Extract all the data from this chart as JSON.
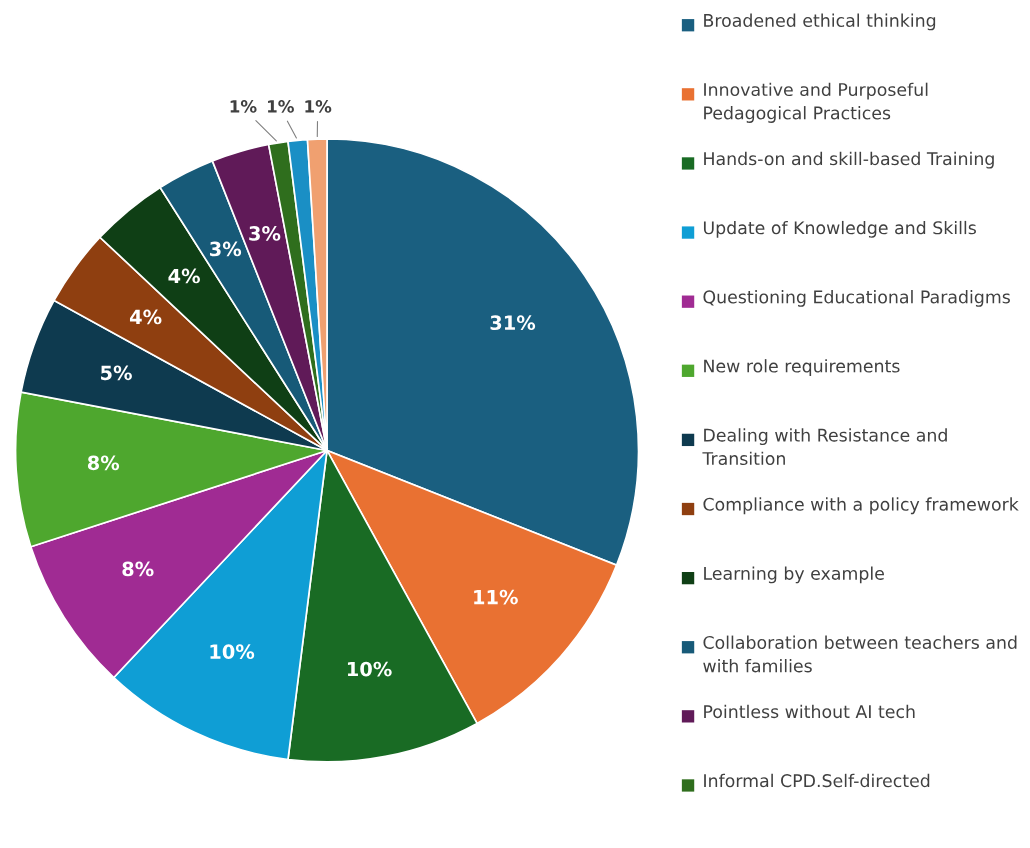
{
  "chart_data": {
    "type": "pie",
    "categories": [
      "Broadened ethical thinking",
      "Innovative and Purposeful Pedagogical Practices",
      "Hands-on and skill-based Training",
      "Update of Knowledge and Skills",
      "Questioning Educational Paradigms",
      "New role requirements",
      "Dealing with Resistance and Transition",
      "Compliance with a policy framework",
      "Learning by example",
      "Collaboration between teachers and with families",
      "Pointless without AI tech",
      "Informal CPD.Self-directed",
      null,
      null
    ],
    "values": [
      31,
      11,
      10,
      10,
      8,
      8,
      5,
      4,
      4,
      3,
      3,
      1,
      1,
      1
    ],
    "value_labels": [
      "31%",
      "11%",
      "10%",
      "10%",
      "8%",
      "8%",
      "5%",
      "4%",
      "4%",
      "3%",
      "3%",
      "1%",
      "1%",
      "1%"
    ],
    "colors": [
      "#1a5f80",
      "#e97132",
      "#196b24",
      "#0f9ed5",
      "#a02b93",
      "#4ea72e",
      "#0e3a4f",
      "#8f3f10",
      "#0f3f15",
      "#175a78",
      "#601a58",
      "#2f6e1d",
      "#1a8fc5",
      "#f0a070"
    ],
    "legend": "right"
  }
}
